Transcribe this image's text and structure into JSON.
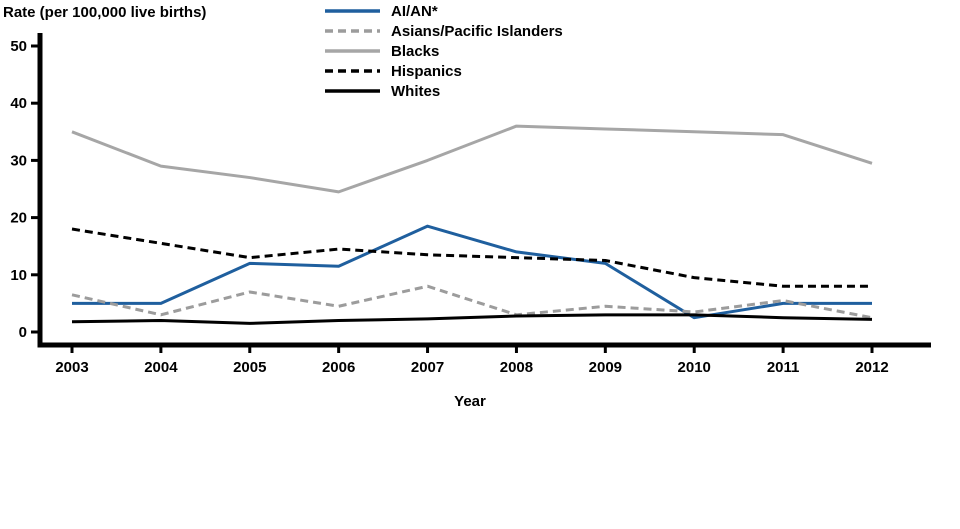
{
  "chart_data": {
    "type": "line",
    "title": "",
    "ylabel": "Rate (per 100,000 live births)",
    "xlabel": "Year",
    "x": [
      2003,
      2004,
      2005,
      2006,
      2007,
      2008,
      2009,
      2010,
      2011,
      2012
    ],
    "ylim": [
      0,
      50
    ],
    "yticks": [
      0,
      10,
      20,
      30,
      40,
      50
    ],
    "grid": false,
    "legend_position": "top-center",
    "axis_color": "#000000",
    "series": [
      {
        "name": "AI/AN*",
        "color": "#1F5F9E",
        "dash": "solid",
        "values": [
          5,
          5,
          12,
          11.5,
          18.5,
          14,
          12,
          2.5,
          5,
          5
        ]
      },
      {
        "name": "Asians/Pacific Islanders",
        "color": "#9C9C9C",
        "dash": "dashed",
        "values": [
          6.5,
          3,
          7,
          4.5,
          8,
          3,
          4.5,
          3.5,
          5.5,
          2.5
        ]
      },
      {
        "name": "Blacks",
        "color": "#A6A6A6",
        "dash": "solid",
        "values": [
          35,
          29,
          27,
          24.5,
          30,
          36,
          35.5,
          35,
          34.5,
          29.5
        ]
      },
      {
        "name": "Hispanics",
        "color": "#000000",
        "dash": "dashed",
        "values": [
          18,
          15.5,
          13,
          14.5,
          13.5,
          13,
          12.5,
          9.5,
          8,
          8
        ]
      },
      {
        "name": "Whites",
        "color": "#000000",
        "dash": "solid",
        "values": [
          1.8,
          2,
          1.5,
          2,
          2.3,
          2.8,
          3,
          3,
          2.5,
          2.2
        ]
      }
    ]
  }
}
